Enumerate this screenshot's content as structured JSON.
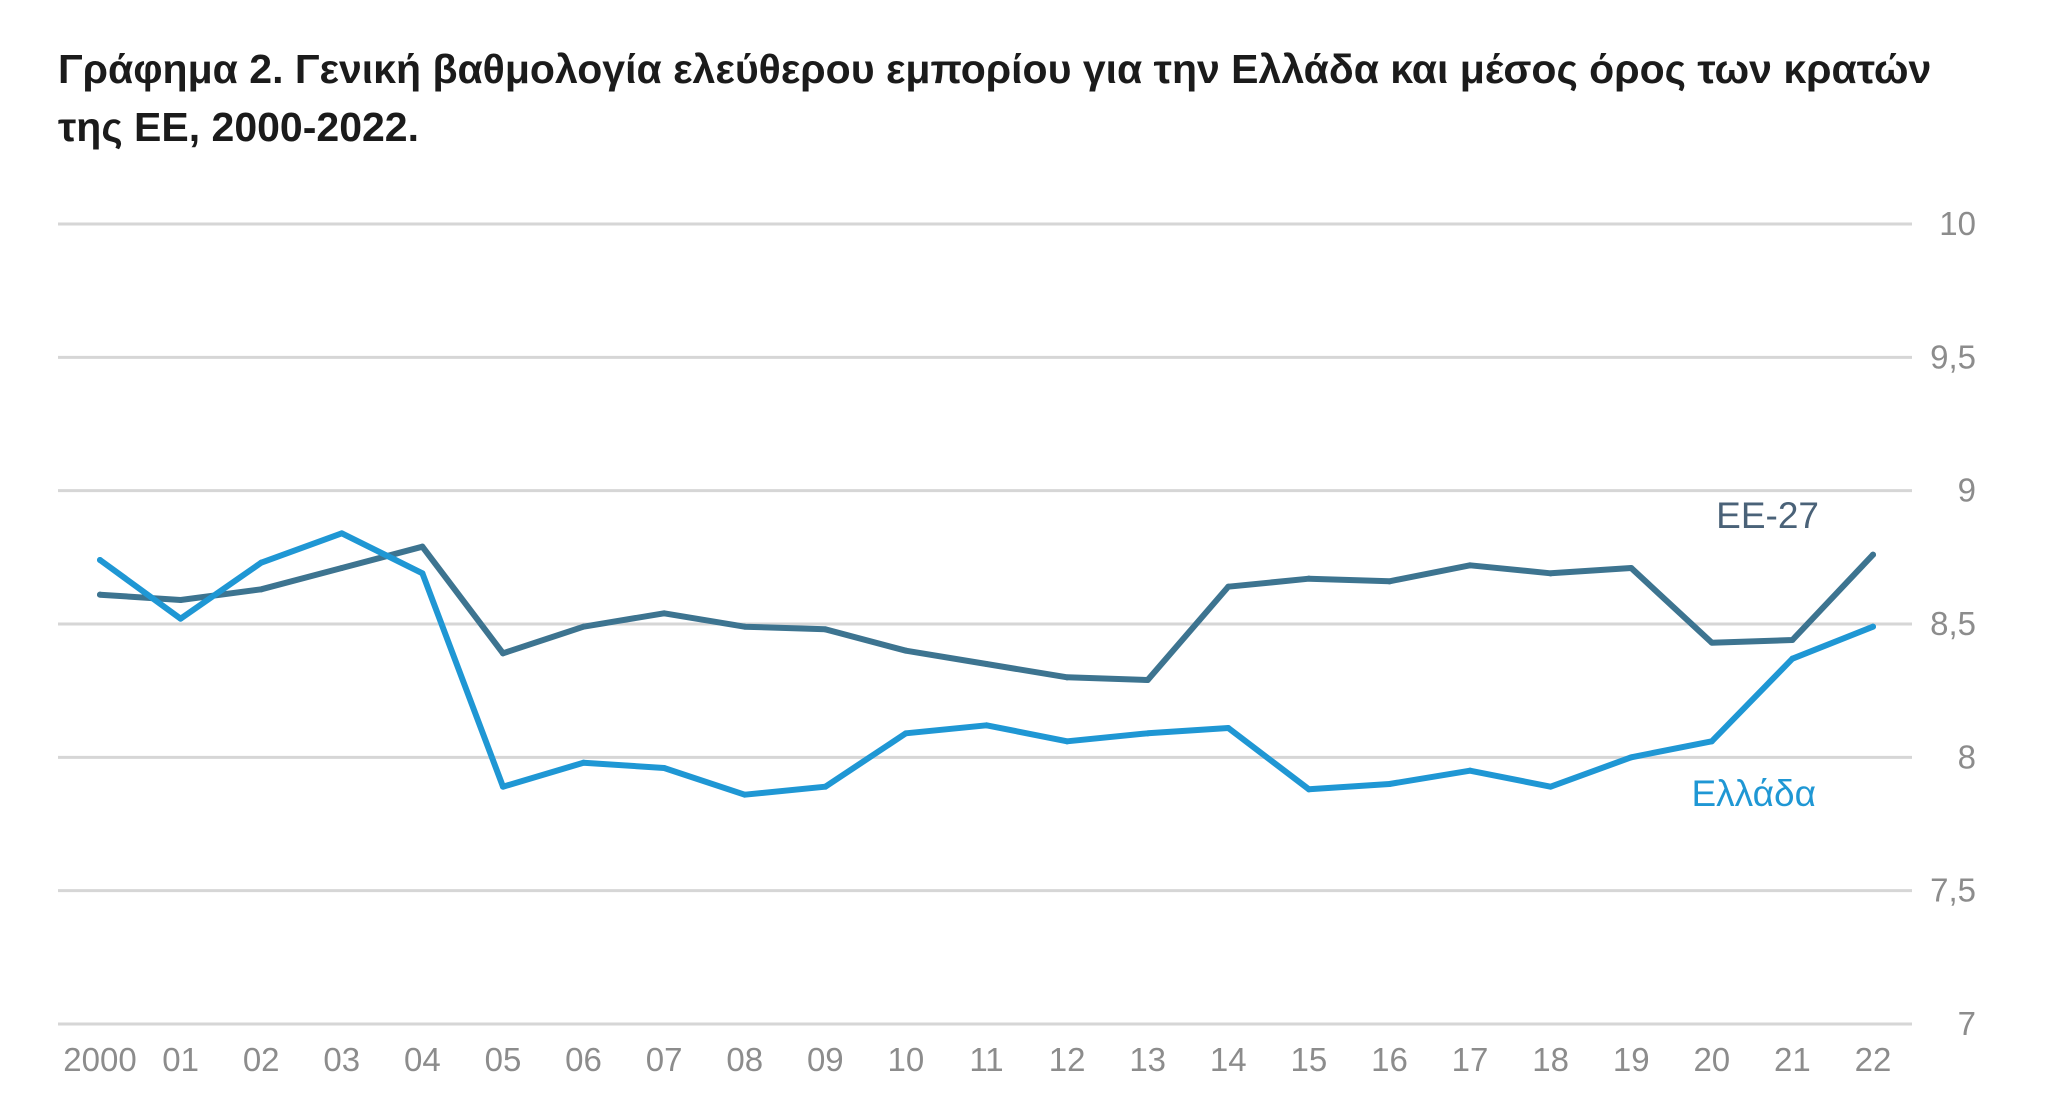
{
  "chart_data": {
    "type": "line",
    "title": "Γράφημα 2. Γενική βαθμολογία ελεύθερου εμπορίου για την Ελλάδα και μέσος όρος των κρατών της ΕΕ, 2000-2022.",
    "xlabel": "",
    "ylabel": "",
    "x": [
      "2000",
      "01",
      "02",
      "03",
      "04",
      "05",
      "06",
      "07",
      "08",
      "09",
      "10",
      "11",
      "12",
      "13",
      "14",
      "15",
      "16",
      "17",
      "18",
      "19",
      "20",
      "21",
      "22"
    ],
    "ylim": [
      7,
      10
    ],
    "yticks": [
      {
        "value": 10,
        "label": "10"
      },
      {
        "value": 9.5,
        "label": "9,5"
      },
      {
        "value": 9,
        "label": "9"
      },
      {
        "value": 8.5,
        "label": "8,5"
      },
      {
        "value": 8,
        "label": "8"
      },
      {
        "value": 7.5,
        "label": "7,5"
      },
      {
        "value": 7,
        "label": "7"
      }
    ],
    "grid": true,
    "y_axis_side": "right",
    "series": [
      {
        "name": "ΕΕ-27",
        "color": "#3d7490",
        "values": [
          8.61,
          8.59,
          8.63,
          8.71,
          8.79,
          8.39,
          8.49,
          8.54,
          8.49,
          8.48,
          8.4,
          8.35,
          8.3,
          8.29,
          8.64,
          8.67,
          8.66,
          8.72,
          8.69,
          8.71,
          8.43,
          8.44,
          8.76
        ]
      },
      {
        "name": "Ελλάδα",
        "color": "#1f97d4",
        "values": [
          8.74,
          8.52,
          8.73,
          8.84,
          8.69,
          7.89,
          7.98,
          7.96,
          7.86,
          7.89,
          8.09,
          8.12,
          8.06,
          8.09,
          8.11,
          7.88,
          7.9,
          7.95,
          7.89,
          8.0,
          8.06,
          8.37,
          8.49
        ]
      }
    ]
  }
}
